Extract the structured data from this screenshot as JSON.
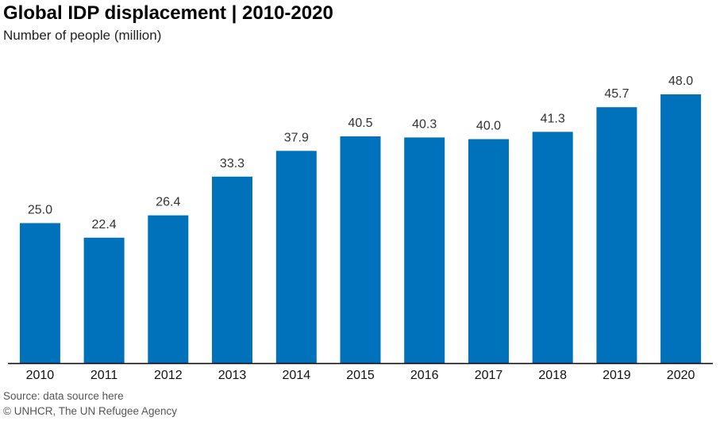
{
  "title": "Global IDP displacement | 2010-2020",
  "subtitle": "Number of people (million)",
  "source": "Source: data source here",
  "credit": "© UNHCR, The UN Refugee Agency",
  "colors": {
    "bar": "#0072bc",
    "axis": "#000000",
    "label": "#333333"
  },
  "chart_data": {
    "type": "bar",
    "title": "Global IDP displacement | 2010-2020",
    "subtitle": "Number of people (million)",
    "categories": [
      "2010",
      "2011",
      "2012",
      "2013",
      "2014",
      "2015",
      "2016",
      "2017",
      "2018",
      "2019",
      "2020"
    ],
    "values": [
      25.0,
      22.4,
      26.4,
      33.3,
      37.9,
      40.5,
      40.3,
      40.0,
      41.3,
      45.7,
      48.0
    ],
    "value_labels": [
      "25.0",
      "22.4",
      "26.4",
      "33.3",
      "37.9",
      "40.5",
      "40.3",
      "40.0",
      "41.3",
      "45.7",
      "48.0"
    ],
    "ylim": [
      0,
      48.0
    ],
    "grid": false,
    "legend": "none"
  }
}
